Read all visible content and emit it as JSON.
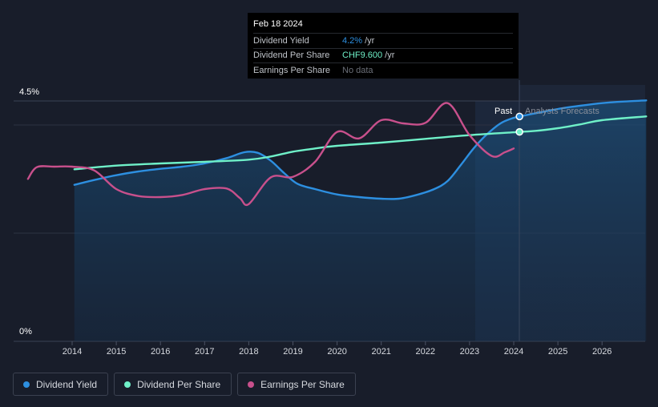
{
  "tooltip": {
    "date": "Feb 18 2024",
    "rows": [
      {
        "label": "Dividend Yield",
        "value": "4.2%",
        "unit": "/yr",
        "color": "#2d8fe0"
      },
      {
        "label": "Dividend Per Share",
        "value": "CHF9.600",
        "unit": "/yr",
        "color": "#6ff0c8"
      },
      {
        "label": "Earnings Per Share",
        "value": "No data",
        "unit": "",
        "color": "#6b6f78"
      }
    ]
  },
  "past_label": "Past",
  "forecast_label": "Analysts Forecasts",
  "legend": [
    {
      "label": "Dividend Yield",
      "color": "#2d8fe0"
    },
    {
      "label": "Dividend Per Share",
      "color": "#6ff0c8"
    },
    {
      "label": "Earnings Per Share",
      "color": "#c8508c"
    }
  ],
  "chart_data": {
    "type": "line",
    "x_ticks": [
      "2014",
      "2015",
      "2016",
      "2017",
      "2018",
      "2019",
      "2020",
      "2021",
      "2022",
      "2023",
      "2024",
      "2025",
      "2026"
    ],
    "y_tick_labels": [
      "4.5%",
      "0%"
    ],
    "ylim": [
      0,
      4.5
    ],
    "xlim": [
      2013.0,
      2027.0
    ],
    "past_until": 2024.13,
    "series": [
      {
        "name": "Dividend Yield",
        "color": "#2d8fe0",
        "area": true,
        "points": [
          [
            2014.05,
            2.93
          ],
          [
            2014.5,
            3.02
          ],
          [
            2015.0,
            3.11
          ],
          [
            2015.5,
            3.18
          ],
          [
            2016.0,
            3.23
          ],
          [
            2016.5,
            3.27
          ],
          [
            2017.0,
            3.33
          ],
          [
            2017.5,
            3.43
          ],
          [
            2017.9,
            3.54
          ],
          [
            2018.2,
            3.53
          ],
          [
            2018.5,
            3.38
          ],
          [
            2018.8,
            3.15
          ],
          [
            2019.1,
            2.95
          ],
          [
            2019.5,
            2.85
          ],
          [
            2020.0,
            2.75
          ],
          [
            2020.5,
            2.7
          ],
          [
            2021.0,
            2.67
          ],
          [
            2021.4,
            2.67
          ],
          [
            2021.8,
            2.74
          ],
          [
            2022.2,
            2.85
          ],
          [
            2022.5,
            3.0
          ],
          [
            2022.8,
            3.3
          ],
          [
            2023.1,
            3.62
          ],
          [
            2023.4,
            3.88
          ],
          [
            2023.7,
            4.08
          ],
          [
            2023.95,
            4.17
          ],
          [
            2024.13,
            4.21
          ],
          [
            2024.5,
            4.27
          ],
          [
            2025.0,
            4.35
          ],
          [
            2025.5,
            4.41
          ],
          [
            2026.0,
            4.46
          ],
          [
            2026.5,
            4.49
          ],
          [
            2027.0,
            4.51
          ]
        ]
      },
      {
        "name": "Dividend Per Share",
        "color": "#6ff0c8",
        "points": [
          [
            2014.05,
            3.22
          ],
          [
            2015.0,
            3.29
          ],
          [
            2016.0,
            3.33
          ],
          [
            2017.0,
            3.36
          ],
          [
            2018.0,
            3.4
          ],
          [
            2018.5,
            3.46
          ],
          [
            2019.0,
            3.55
          ],
          [
            2019.5,
            3.61
          ],
          [
            2020.0,
            3.66
          ],
          [
            2021.0,
            3.72
          ],
          [
            2022.0,
            3.79
          ],
          [
            2023.0,
            3.86
          ],
          [
            2024.13,
            3.92
          ],
          [
            2024.5,
            3.94
          ],
          [
            2025.0,
            3.99
          ],
          [
            2025.5,
            4.06
          ],
          [
            2026.0,
            4.14
          ],
          [
            2027.0,
            4.21
          ]
        ]
      },
      {
        "name": "Earnings Per Share",
        "color": "#c8508c",
        "points": [
          [
            2013.0,
            3.04
          ],
          [
            2013.2,
            3.26
          ],
          [
            2013.6,
            3.27
          ],
          [
            2014.0,
            3.27
          ],
          [
            2014.5,
            3.2
          ],
          [
            2015.0,
            2.85
          ],
          [
            2015.5,
            2.72
          ],
          [
            2016.0,
            2.7
          ],
          [
            2016.5,
            2.74
          ],
          [
            2017.0,
            2.85
          ],
          [
            2017.5,
            2.86
          ],
          [
            2017.8,
            2.68
          ],
          [
            2018.0,
            2.57
          ],
          [
            2018.5,
            3.07
          ],
          [
            2019.0,
            3.08
          ],
          [
            2019.5,
            3.36
          ],
          [
            2020.0,
            3.92
          ],
          [
            2020.5,
            3.8
          ],
          [
            2021.0,
            4.14
          ],
          [
            2021.5,
            4.08
          ],
          [
            2022.0,
            4.09
          ],
          [
            2022.5,
            4.46
          ],
          [
            2023.0,
            3.86
          ],
          [
            2023.5,
            3.47
          ],
          [
            2023.8,
            3.54
          ],
          [
            2024.0,
            3.61
          ]
        ]
      }
    ],
    "markers": [
      {
        "series": "Dividend Yield",
        "x": 2024.13,
        "y": 4.21
      },
      {
        "series": "Dividend Per Share",
        "x": 2024.13,
        "y": 3.92
      }
    ]
  }
}
